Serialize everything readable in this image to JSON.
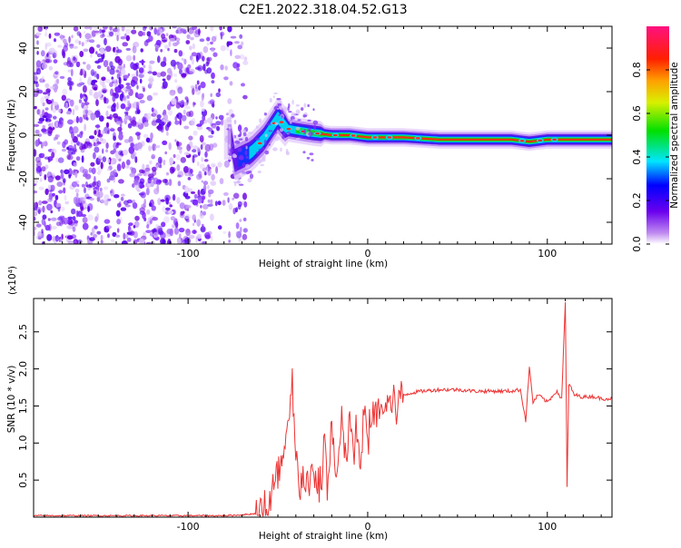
{
  "title": "C2E1.2022.318.04.52.G13",
  "chart_data": [
    {
      "type": "heatmap",
      "xlabel": "Height of straight line (km)",
      "ylabel": "Frequency (Hz)",
      "xlim": [
        -186,
        136
      ],
      "ylim": [
        -50,
        50
      ],
      "xticks": [
        -100,
        0,
        100
      ],
      "yticks": [
        -40,
        -20,
        0,
        20,
        40
      ],
      "colorbar": {
        "label": "Normalized spectral amplitude",
        "range": [
          0.0,
          1.0
        ],
        "ticks": [
          "0.0",
          "0.2",
          "0.4",
          "0.6",
          "0.8"
        ]
      },
      "signal_track": [
        {
          "x": -75,
          "y": -12
        },
        {
          "x": -65,
          "y": -8
        },
        {
          "x": -58,
          "y": -2
        },
        {
          "x": -50,
          "y": 8
        },
        {
          "x": -45,
          "y": 3
        },
        {
          "x": -38,
          "y": 2
        },
        {
          "x": -30,
          "y": 1
        },
        {
          "x": -20,
          "y": 0
        },
        {
          "x": -10,
          "y": 0
        },
        {
          "x": 0,
          "y": -1
        },
        {
          "x": 20,
          "y": -1
        },
        {
          "x": 40,
          "y": -2
        },
        {
          "x": 60,
          "y": -2
        },
        {
          "x": 80,
          "y": -2
        },
        {
          "x": 90,
          "y": -3
        },
        {
          "x": 100,
          "y": -2
        },
        {
          "x": 110,
          "y": -2
        },
        {
          "x": 136,
          "y": -2
        }
      ]
    },
    {
      "type": "line",
      "xlabel": "Height of straight line (km)",
      "ylabel": "SNR (10 * v/v)",
      "y_multiplier": "(x10⁴)",
      "xlim": [
        -186,
        136
      ],
      "ylim": [
        0,
        2.95
      ],
      "xticks": [
        -100,
        0,
        100
      ],
      "yticks": [
        "0.5",
        "1.0",
        "1.5",
        "2.0",
        "2.5"
      ],
      "color": "#ee3333",
      "series": [
        {
          "x": [
            -186,
            -150,
            -100,
            -80,
            -70,
            -62,
            -55,
            -50,
            -46,
            -44,
            -42,
            -40,
            -38,
            -36,
            -34,
            -32,
            -30,
            -28,
            -26,
            -24,
            -22,
            -20,
            -18,
            -16,
            -14,
            -12,
            -10,
            -8,
            -6,
            -4,
            -2,
            0,
            2,
            4,
            6,
            8,
            10,
            12,
            14,
            16,
            20,
            25,
            30,
            40,
            50,
            60,
            70,
            80,
            85,
            88,
            90,
            92,
            95,
            100,
            105,
            108,
            110,
            111,
            112,
            115,
            120,
            125,
            130,
            136
          ],
          "y": [
            0.02,
            0.02,
            0.02,
            0.02,
            0.03,
            0.05,
            0.15,
            0.5,
            0.9,
            1.2,
            1.75,
            0.7,
            0.5,
            0.6,
            0.45,
            0.55,
            0.4,
            0.6,
            0.3,
            1.1,
            0.4,
            1.3,
            0.5,
            0.7,
            1.4,
            0.6,
            1.5,
            0.7,
            1.3,
            0.5,
            1.4,
            1.0,
            1.5,
            1.3,
            1.5,
            1.4,
            1.55,
            1.5,
            1.6,
            1.55,
            1.65,
            1.68,
            1.7,
            1.72,
            1.72,
            1.7,
            1.7,
            1.7,
            1.72,
            1.3,
            2.02,
            1.55,
            1.65,
            1.55,
            1.7,
            1.6,
            2.9,
            0.4,
            1.8,
            1.65,
            1.62,
            1.63,
            1.6,
            1.6
          ]
        }
      ]
    }
  ]
}
